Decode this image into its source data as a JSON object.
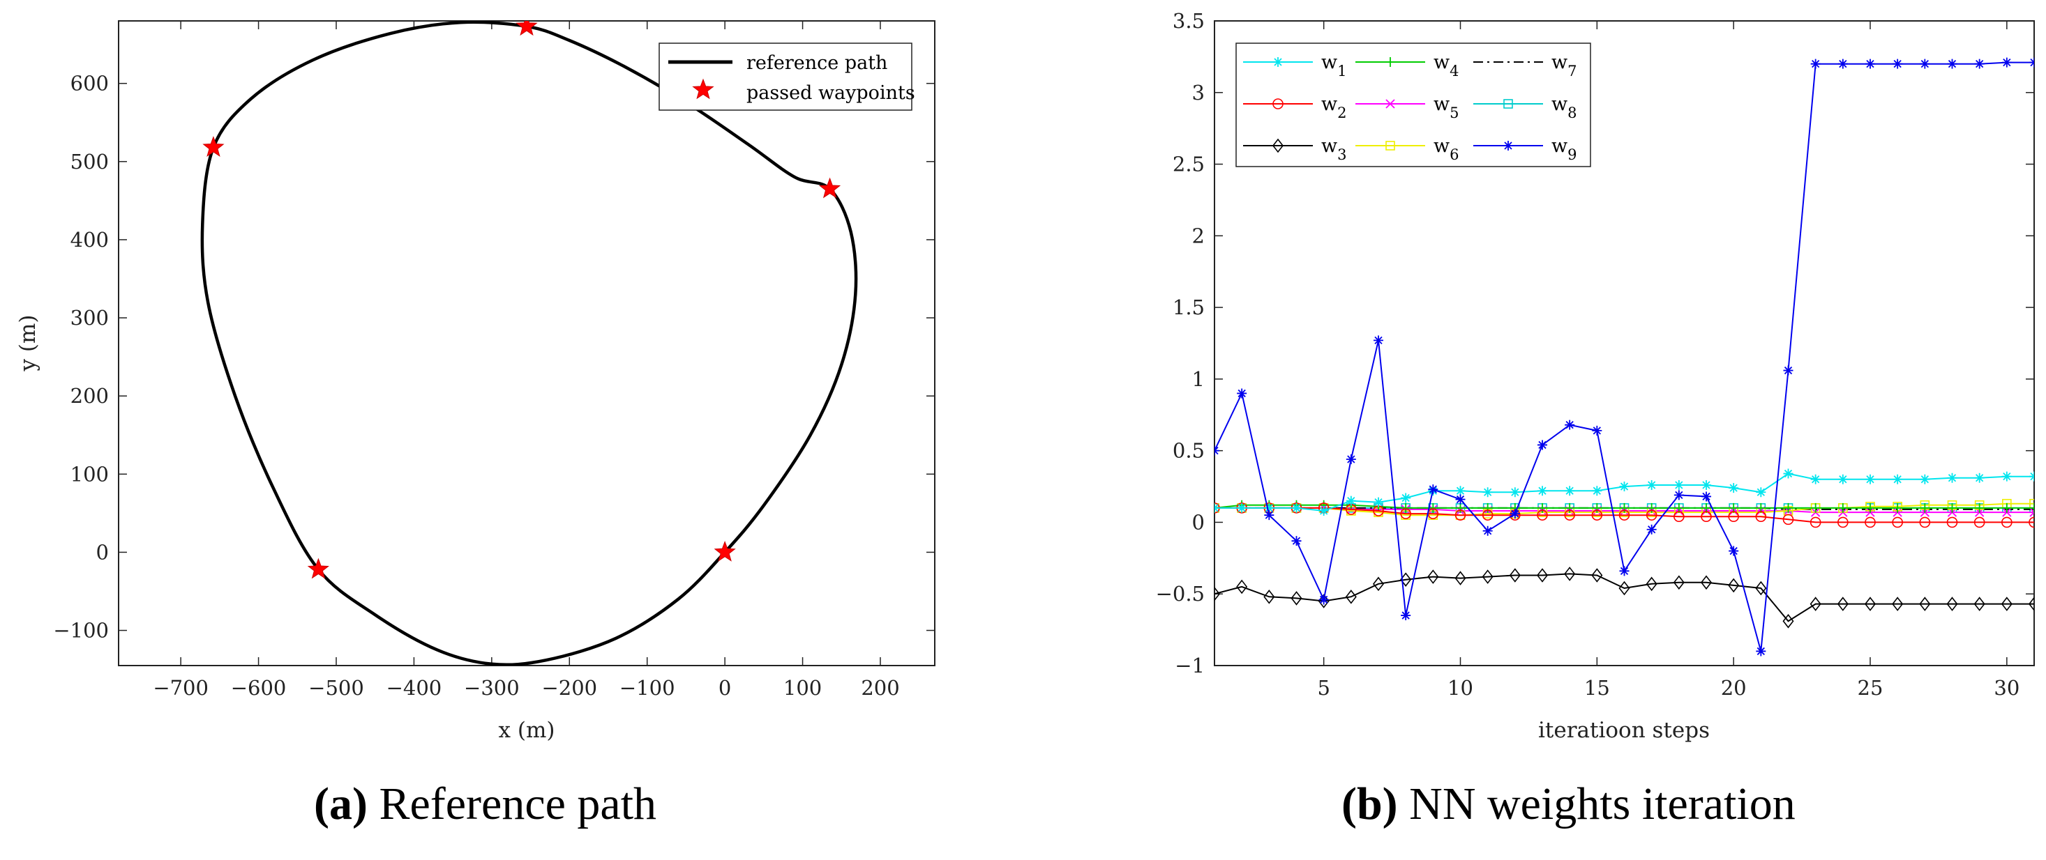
{
  "chart_data": [
    {
      "type": "line",
      "panel": "a",
      "xlabel": "x (m)",
      "ylabel": "y (m)",
      "xlim": [
        -780,
        270
      ],
      "ylim": [
        -145,
        680
      ],
      "xticks": [
        -700,
        -600,
        -500,
        -400,
        -300,
        -200,
        -100,
        0,
        100,
        200
      ],
      "yticks": [
        -100,
        0,
        100,
        200,
        300,
        400,
        500,
        600
      ],
      "legend": [
        "reference path",
        "passed waypoints"
      ],
      "legend_position": "top-right",
      "path": [
        [
          -255,
          673
        ],
        [
          -200,
          655
        ],
        [
          -130,
          622
        ],
        [
          -50,
          576
        ],
        [
          30,
          522
        ],
        [
          90,
          480
        ],
        [
          135,
          465
        ],
        [
          162,
          410
        ],
        [
          168,
          330
        ],
        [
          150,
          240
        ],
        [
          110,
          150
        ],
        [
          50,
          60
        ],
        [
          0,
          0
        ],
        [
          -60,
          -60
        ],
        [
          -140,
          -110
        ],
        [
          -230,
          -138
        ],
        [
          -300,
          -143
        ],
        [
          -370,
          -125
        ],
        [
          -450,
          -80
        ],
        [
          -523,
          -22
        ],
        [
          -580,
          80
        ],
        [
          -630,
          200
        ],
        [
          -665,
          320
        ],
        [
          -672,
          420
        ],
        [
          -658,
          518
        ],
        [
          -610,
          580
        ],
        [
          -530,
          630
        ],
        [
          -430,
          664
        ],
        [
          -340,
          678
        ],
        [
          -255,
          673
        ]
      ],
      "waypoints": [
        [
          -255,
          673
        ],
        [
          135,
          465
        ],
        [
          0,
          0
        ],
        [
          -523,
          -22
        ],
        [
          -658,
          518
        ]
      ]
    },
    {
      "type": "line",
      "panel": "b",
      "xlabel": "iteratioon steps",
      "ylabel": "",
      "xlim": [
        1,
        31
      ],
      "ylim": [
        -1,
        3.5
      ],
      "xticks": [
        5,
        10,
        15,
        20,
        25,
        30
      ],
      "yticks": [
        -1,
        -0.5,
        0,
        0.5,
        1,
        1.5,
        2,
        2.5,
        3,
        3.5
      ],
      "legend_position": "top-left",
      "x": [
        1,
        2,
        3,
        4,
        5,
        6,
        7,
        8,
        9,
        10,
        11,
        12,
        13,
        14,
        15,
        16,
        17,
        18,
        19,
        20,
        21,
        22,
        23,
        24,
        25,
        26,
        27,
        28,
        29,
        30,
        31
      ],
      "series": [
        {
          "name": "w",
          "sub": "1",
          "color": "#00e5ee",
          "marker": "asterisk",
          "values": [
            0.1,
            0.1,
            0.1,
            0.1,
            0.08,
            0.15,
            0.14,
            0.17,
            0.22,
            0.22,
            0.21,
            0.21,
            0.22,
            0.22,
            0.22,
            0.25,
            0.26,
            0.26,
            0.26,
            0.24,
            0.21,
            0.34,
            0.3,
            0.3,
            0.3,
            0.3,
            0.3,
            0.31,
            0.31,
            0.32,
            0.32
          ]
        },
        {
          "name": "w",
          "sub": "2",
          "color": "#ff0000",
          "marker": "circle",
          "values": [
            0.1,
            0.1,
            0.1,
            0.1,
            0.1,
            0.09,
            0.08,
            0.06,
            0.06,
            0.05,
            0.05,
            0.05,
            0.05,
            0.05,
            0.05,
            0.05,
            0.05,
            0.04,
            0.04,
            0.04,
            0.04,
            0.02,
            0.0,
            0.0,
            0.0,
            0.0,
            0.0,
            0.0,
            0.0,
            0.0,
            0.0
          ]
        },
        {
          "name": "w",
          "sub": "3",
          "color": "#000000",
          "marker": "diamond",
          "values": [
            -0.5,
            -0.45,
            -0.52,
            -0.53,
            -0.55,
            -0.52,
            -0.43,
            -0.4,
            -0.38,
            -0.39,
            -0.38,
            -0.37,
            -0.37,
            -0.36,
            -0.37,
            -0.46,
            -0.43,
            -0.42,
            -0.42,
            -0.44,
            -0.46,
            -0.69,
            -0.57,
            -0.57,
            -0.57,
            -0.57,
            -0.57,
            -0.57,
            -0.57,
            -0.57,
            -0.57
          ]
        },
        {
          "name": "w",
          "sub": "4",
          "color": "#00cc00",
          "marker": "plus",
          "values": [
            0.1,
            0.12,
            0.12,
            0.12,
            0.12,
            0.12,
            0.11,
            0.1,
            0.1,
            0.1,
            0.1,
            0.1,
            0.1,
            0.1,
            0.1,
            0.1,
            0.1,
            0.1,
            0.1,
            0.1,
            0.1,
            0.1,
            0.1,
            0.1,
            0.1,
            0.1,
            0.1,
            0.1,
            0.1,
            0.1,
            0.1
          ]
        },
        {
          "name": "w",
          "sub": "5",
          "color": "#ff00ff",
          "marker": "x",
          "values": [
            0.1,
            0.1,
            0.1,
            0.1,
            0.1,
            0.09,
            0.09,
            0.09,
            0.09,
            0.08,
            0.08,
            0.08,
            0.08,
            0.08,
            0.08,
            0.08,
            0.08,
            0.08,
            0.08,
            0.08,
            0.08,
            0.08,
            0.07,
            0.07,
            0.07,
            0.07,
            0.07,
            0.07,
            0.07,
            0.07,
            0.07
          ]
        },
        {
          "name": "w",
          "sub": "6",
          "color": "#eeee00",
          "marker": "square",
          "values": [
            0.1,
            0.1,
            0.1,
            0.1,
            0.1,
            0.08,
            0.07,
            0.05,
            0.05,
            0.05,
            0.06,
            0.06,
            0.07,
            0.07,
            0.07,
            0.07,
            0.07,
            0.07,
            0.07,
            0.07,
            0.07,
            0.08,
            0.1,
            0.1,
            0.11,
            0.11,
            0.12,
            0.12,
            0.12,
            0.13,
            0.13
          ]
        },
        {
          "name": "w",
          "sub": "7",
          "color": "#000000",
          "marker": "none",
          "dash": "dashdot",
          "values": [
            0.1,
            0.1,
            0.1,
            0.1,
            0.1,
            0.1,
            0.1,
            0.1,
            0.1,
            0.1,
            0.1,
            0.1,
            0.1,
            0.1,
            0.1,
            0.1,
            0.1,
            0.1,
            0.1,
            0.1,
            0.1,
            0.09,
            0.09,
            0.09,
            0.09,
            0.09,
            0.09,
            0.09,
            0.09,
            0.09,
            0.09
          ]
        },
        {
          "name": "w",
          "sub": "8",
          "color": "#00cccc",
          "marker": "square",
          "values": [
            0.1,
            0.1,
            0.1,
            0.1,
            0.1,
            0.1,
            0.1,
            0.1,
            0.1,
            0.1,
            0.1,
            0.1,
            0.1,
            0.1,
            0.1,
            0.1,
            0.1,
            0.1,
            0.1,
            0.1,
            0.1,
            0.1,
            0.1,
            0.1,
            0.1,
            0.1,
            0.1,
            0.1,
            0.1,
            0.1,
            0.1
          ]
        },
        {
          "name": "w",
          "sub": "9",
          "color": "#0000ee",
          "marker": "asterisk",
          "values": [
            0.5,
            0.9,
            0.05,
            -0.13,
            -0.54,
            0.44,
            1.27,
            -0.65,
            0.23,
            0.16,
            -0.06,
            0.06,
            0.54,
            0.68,
            0.64,
            -0.34,
            -0.05,
            0.19,
            0.18,
            -0.2,
            -0.9,
            1.06,
            3.2,
            3.2,
            3.2,
            3.2,
            3.2,
            3.2,
            3.2,
            3.21,
            3.21
          ]
        }
      ]
    }
  ],
  "captions": [
    {
      "label": "(a)",
      "text": "Reference path"
    },
    {
      "label": "(b)",
      "text": "NN weights iteration"
    }
  ]
}
